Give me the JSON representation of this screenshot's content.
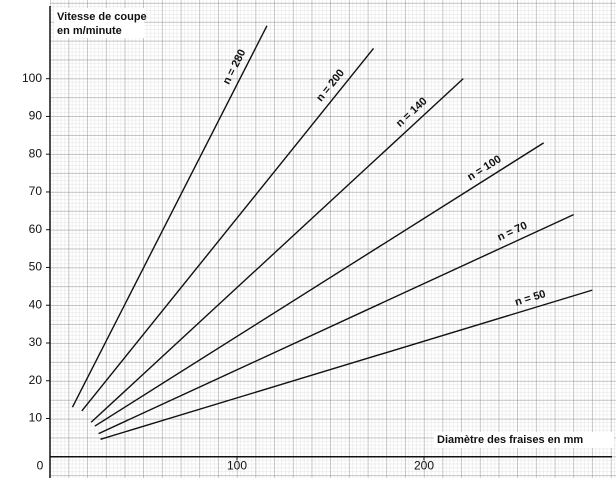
{
  "chart_data": {
    "type": "line",
    "y_label": [
      "Vitesse de coupe",
      "en m/minute"
    ],
    "x_label": "Diamètre des fraises en mm",
    "xlim": [
      0,
      300
    ],
    "ylim": [
      -3,
      118
    ],
    "xticks": [
      0,
      100,
      200
    ],
    "yticks": [
      10,
      20,
      30,
      40,
      50,
      60,
      70,
      80,
      90,
      100
    ],
    "grid": true,
    "color": "#111111",
    "series": [
      {
        "name": "n = 280",
        "x": [
          12,
          116
        ],
        "values": [
          13,
          114
        ]
      },
      {
        "name": "n = 200",
        "x": [
          17,
          173
        ],
        "values": [
          12,
          108
        ]
      },
      {
        "name": "n = 140",
        "x": [
          22,
          221
        ],
        "values": [
          9,
          100
        ]
      },
      {
        "name": "n = 100",
        "x": [
          24,
          264
        ],
        "values": [
          8,
          83
        ]
      },
      {
        "name": "n = 70",
        "x": [
          26,
          280
        ],
        "values": [
          6,
          64
        ]
      },
      {
        "name": "n = 50",
        "x": [
          27,
          290
        ],
        "values": [
          4.5,
          44
        ]
      }
    ]
  }
}
